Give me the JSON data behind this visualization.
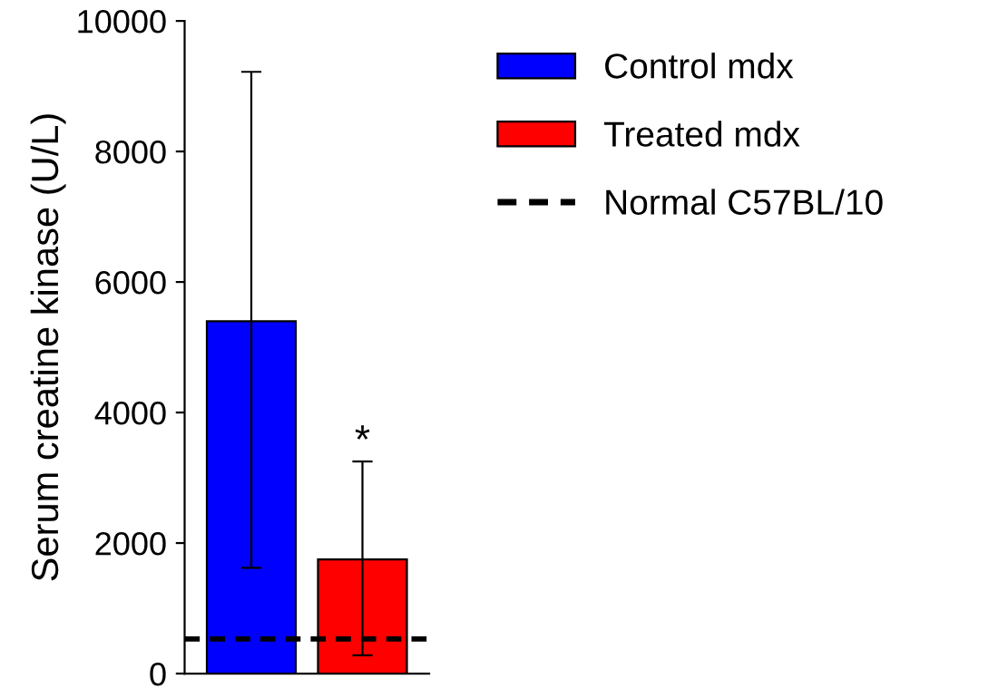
{
  "chart_data": {
    "type": "bar",
    "ylabel": "Serum creatine kinase (U/L)",
    "categories": [
      null,
      null
    ],
    "series": [
      {
        "name": "Control mdx",
        "color": "#0000ff",
        "values": [
          5400,
          null
        ],
        "errors": [
          [
            1620,
            9220
          ],
          null
        ]
      },
      {
        "name": "Treated mdx",
        "color": "#ff0000",
        "values": [
          null,
          1750
        ],
        "errors": [
          null,
          [
            280,
            3250
          ]
        ]
      }
    ],
    "ref_lines": [
      {
        "axis": "y",
        "value": 530,
        "label": "Normal C57BL/10",
        "color": "#000000",
        "line_style": "dashed"
      }
    ],
    "annotations": [
      {
        "text": "*",
        "y": 3250
      }
    ],
    "ylim": [
      0,
      10000
    ],
    "yticks": [
      0,
      2000,
      4000,
      6000,
      8000,
      10000
    ],
    "grid": false,
    "legend": "right"
  }
}
